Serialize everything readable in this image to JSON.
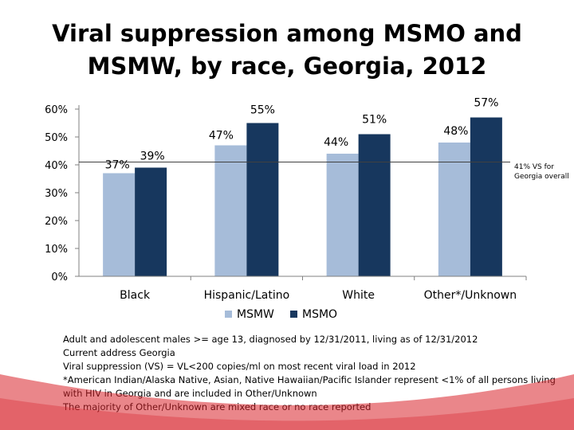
{
  "title": "Viral suppression among MSMO and MSMW, by race, Georgia, 2012",
  "colors": {
    "msmw": "#a6bcd9",
    "msmo": "#17375e",
    "reference_line": "#404040",
    "accent": "#d8232a"
  },
  "chart_data": {
    "type": "bar",
    "title": "Viral suppression among MSMO and MSMW, by race, Georgia, 2012",
    "categories": [
      "Black",
      "Hispanic/Latino",
      "White",
      "Other*/Unknown"
    ],
    "series": [
      {
        "name": "MSMW",
        "values": [
          37,
          47,
          44,
          48
        ],
        "labels": [
          "37%",
          "47%",
          "44%",
          "48%"
        ]
      },
      {
        "name": "MSMO",
        "values": [
          39,
          55,
          51,
          57
        ],
        "labels": [
          "39%",
          "55%",
          "51%",
          "57%"
        ]
      }
    ],
    "yticks": [
      "0%",
      "10%",
      "20%",
      "30%",
      "40%",
      "50%",
      "60%"
    ],
    "ylim": [
      0,
      60
    ],
    "reference_line": {
      "value": 41,
      "label": "41% VS for Georgia overall"
    },
    "legend": [
      "MSMW",
      "MSMO"
    ],
    "legend_position": "bottom",
    "xlabel": "",
    "ylabel": ""
  },
  "footnotes": [
    "Adult and adolescent males >= age 13, diagnosed by 12/31/2011, living as of 12/31/2012",
    "Current address Georgia",
    "Viral suppression (VS) = VL<200 copies/ml on most recent viral load in 2012",
    "*American Indian/Alaska Native, Asian, Native Hawaiian/Pacific Islander represent <1% of all persons living",
    "with HIV in Georgia and are included in Other/Unknown",
    "The majority of Other/Unknown are mixed race or no race reported"
  ]
}
